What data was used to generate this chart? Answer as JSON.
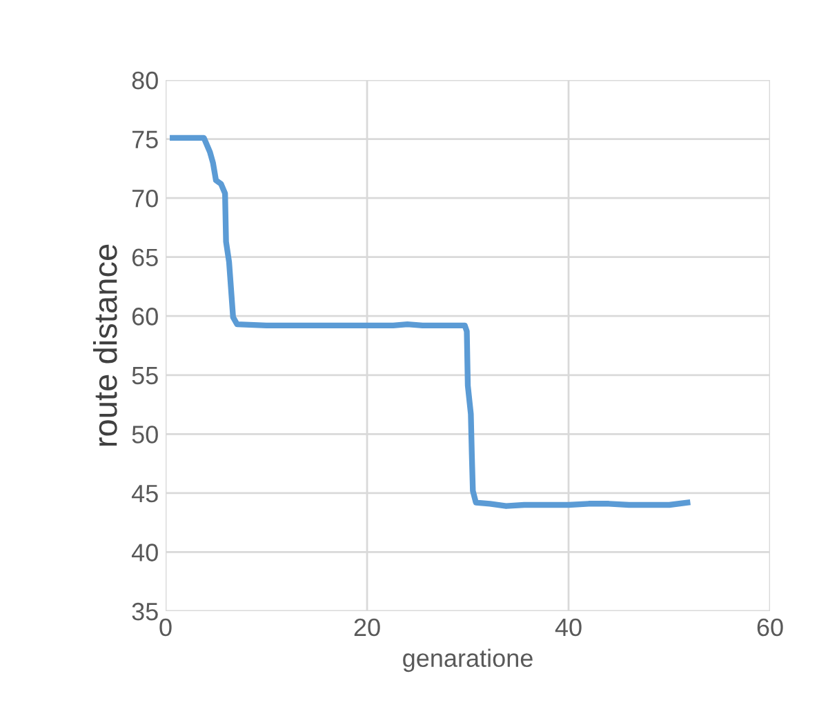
{
  "chart_data": {
    "type": "line",
    "xlabel": "genaratione",
    "ylabel": "route distance",
    "series": [
      {
        "color": "#5b9bd5",
        "x": [
          0.7,
          3.8,
          4.4,
          4.7,
          5.0,
          5.5,
          5.9,
          6.0,
          6.3,
          6.7,
          7.1,
          10,
          15,
          20,
          22.6,
          24,
          25.5,
          29.7,
          29.9,
          30.0,
          30.3,
          30.4,
          30.5,
          30.8,
          32.2,
          33.8,
          35.6,
          40,
          42,
          44,
          46,
          50,
          51.8
        ],
        "values": [
          75.1,
          75.1,
          73.9,
          73.0,
          71.5,
          71.2,
          70.4,
          66.3,
          64.6,
          59.9,
          59.3,
          59.2,
          59.2,
          59.2,
          59.2,
          59.3,
          59.2,
          59.2,
          58.7,
          54.1,
          51.7,
          48.2,
          45.2,
          44.2,
          44.1,
          43.9,
          44.0,
          44.0,
          44.1,
          44.1,
          44.0,
          44.0,
          44.2
        ]
      }
    ],
    "xlim": [
      0,
      60
    ],
    "xticks": [
      0,
      20,
      40,
      60
    ],
    "ylim": [
      35,
      80
    ],
    "yticks": [
      35,
      40,
      45,
      50,
      55,
      60,
      65,
      70,
      75,
      80
    ],
    "grid": true,
    "legend": false,
    "marker": "none",
    "line_style": "solid"
  }
}
